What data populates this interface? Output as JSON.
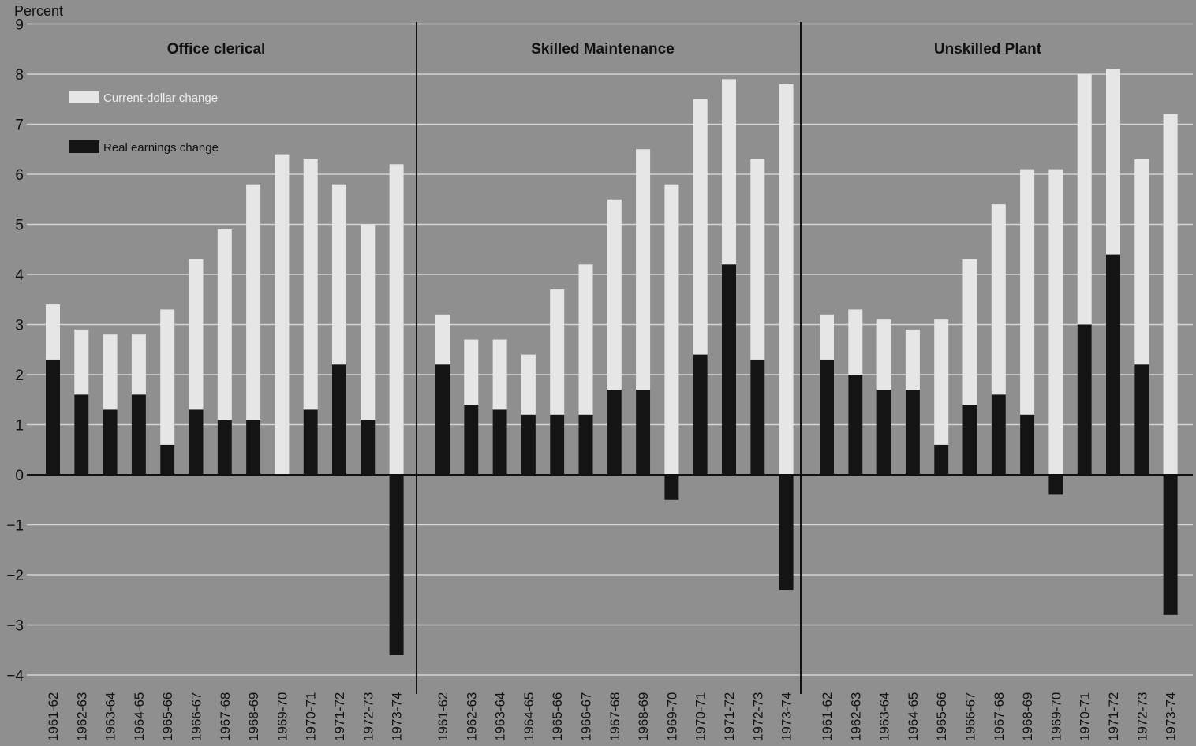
{
  "chart_data": {
    "type": "bar",
    "ylabel": "Percent",
    "ylim": [
      -4,
      9
    ],
    "yticks": [
      "9",
      "8",
      "7",
      "6",
      "5",
      "4",
      "3",
      "2",
      "1",
      "0",
      "−1",
      "−2",
      "−3",
      "−4"
    ],
    "grid": true,
    "legend": {
      "placement": "top-left",
      "entries": [
        {
          "name": "Current-dollar change",
          "color": "#e6e6e6"
        },
        {
          "name": "Real earnings change",
          "color": "#141414"
        }
      ]
    },
    "categories": [
      "1961-62",
      "1962-63",
      "1963-64",
      "1964-65",
      "1965-66",
      "1966-67",
      "1967-68",
      "1968-69",
      "1969-70",
      "1970-71",
      "1971-72",
      "1972-73",
      "1973-74"
    ],
    "panels": [
      {
        "title": "Office clerical",
        "series": [
          {
            "name": "Current-dollar change",
            "values": [
              3.4,
              2.9,
              2.8,
              2.8,
              3.3,
              4.3,
              4.9,
              5.8,
              6.4,
              6.3,
              5.8,
              5.0,
              6.2
            ]
          },
          {
            "name": "Real earnings change",
            "values": [
              2.3,
              1.6,
              1.3,
              1.6,
              0.6,
              1.3,
              1.1,
              1.1,
              0.0,
              1.3,
              2.2,
              1.1,
              -3.6
            ]
          }
        ]
      },
      {
        "title": "Skilled Maintenance",
        "series": [
          {
            "name": "Current-dollar change",
            "values": [
              3.2,
              2.7,
              2.7,
              2.4,
              3.7,
              4.2,
              5.5,
              6.5,
              5.8,
              7.5,
              7.9,
              6.3,
              7.8
            ]
          },
          {
            "name": "Real earnings change",
            "values": [
              2.2,
              1.4,
              1.3,
              1.2,
              1.2,
              1.2,
              1.7,
              1.7,
              -0.5,
              2.4,
              4.2,
              2.3,
              -2.3
            ]
          }
        ]
      },
      {
        "title": "Unskilled Plant",
        "series": [
          {
            "name": "Current-dollar change",
            "values": [
              3.2,
              3.3,
              3.1,
              2.9,
              3.1,
              4.3,
              5.4,
              6.1,
              6.1,
              8.0,
              8.1,
              6.3,
              7.2
            ]
          },
          {
            "name": "Real earnings change",
            "values": [
              2.3,
              2.0,
              1.7,
              1.7,
              0.6,
              1.4,
              1.6,
              1.2,
              -0.4,
              3.0,
              4.4,
              2.2,
              -2.8
            ]
          }
        ]
      }
    ]
  }
}
